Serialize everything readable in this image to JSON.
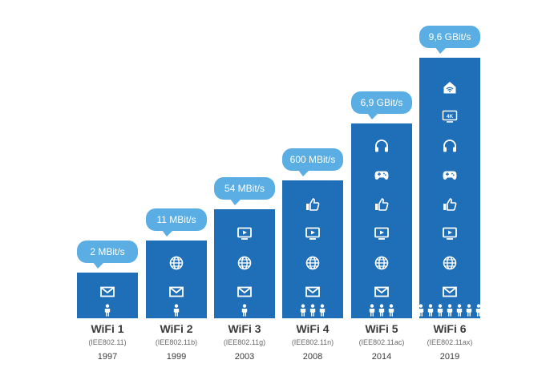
{
  "generations": [
    {
      "name": "WiFi 1",
      "standard": "(IEE802.11)",
      "year": "1997",
      "speed": "2 MBit/s",
      "speed_mbit": 2,
      "icons": [
        "mail-icon"
      ],
      "people": 1
    },
    {
      "name": "WiFi 2",
      "standard": "(IEE802.11b)",
      "year": "1999",
      "speed": "11 MBit/s",
      "speed_mbit": 11,
      "icons": [
        "mail-icon",
        "globe-icon"
      ],
      "people": 1
    },
    {
      "name": "WiFi 3",
      "standard": "(IEE802.11g)",
      "year": "2003",
      "speed": "54 MBit/s",
      "speed_mbit": 54,
      "icons": [
        "mail-icon",
        "globe-icon",
        "video-icon"
      ],
      "people": 1
    },
    {
      "name": "WiFi 4",
      "standard": "(IEE802.11n)",
      "year": "2008",
      "speed": "600 MBit/s",
      "speed_mbit": 600,
      "icons": [
        "mail-icon",
        "globe-icon",
        "video-icon",
        "thumbs-up-icon"
      ],
      "people": 3
    },
    {
      "name": "WiFi 5",
      "standard": "(IEE802.11ac)",
      "year": "2014",
      "speed": "6,9 GBit/s",
      "speed_mbit": 6900,
      "icons": [
        "mail-icon",
        "globe-icon",
        "video-icon",
        "thumbs-up-icon",
        "gamepad-icon",
        "headphones-icon"
      ],
      "people": 3
    },
    {
      "name": "WiFi 6",
      "standard": "(IEE802.11ax)",
      "year": "2019",
      "speed": "9,6 GBit/s",
      "speed_mbit": 9600,
      "icons": [
        "mail-icon",
        "globe-icon",
        "video-icon",
        "thumbs-up-icon",
        "gamepad-icon",
        "headphones-icon",
        "4k-tv-icon",
        "smart-home-icon"
      ],
      "people": 7
    }
  ],
  "colors": {
    "bar": "#1f6fb8",
    "bubble": "#5aaee3",
    "label": "#3b3b3b"
  }
}
